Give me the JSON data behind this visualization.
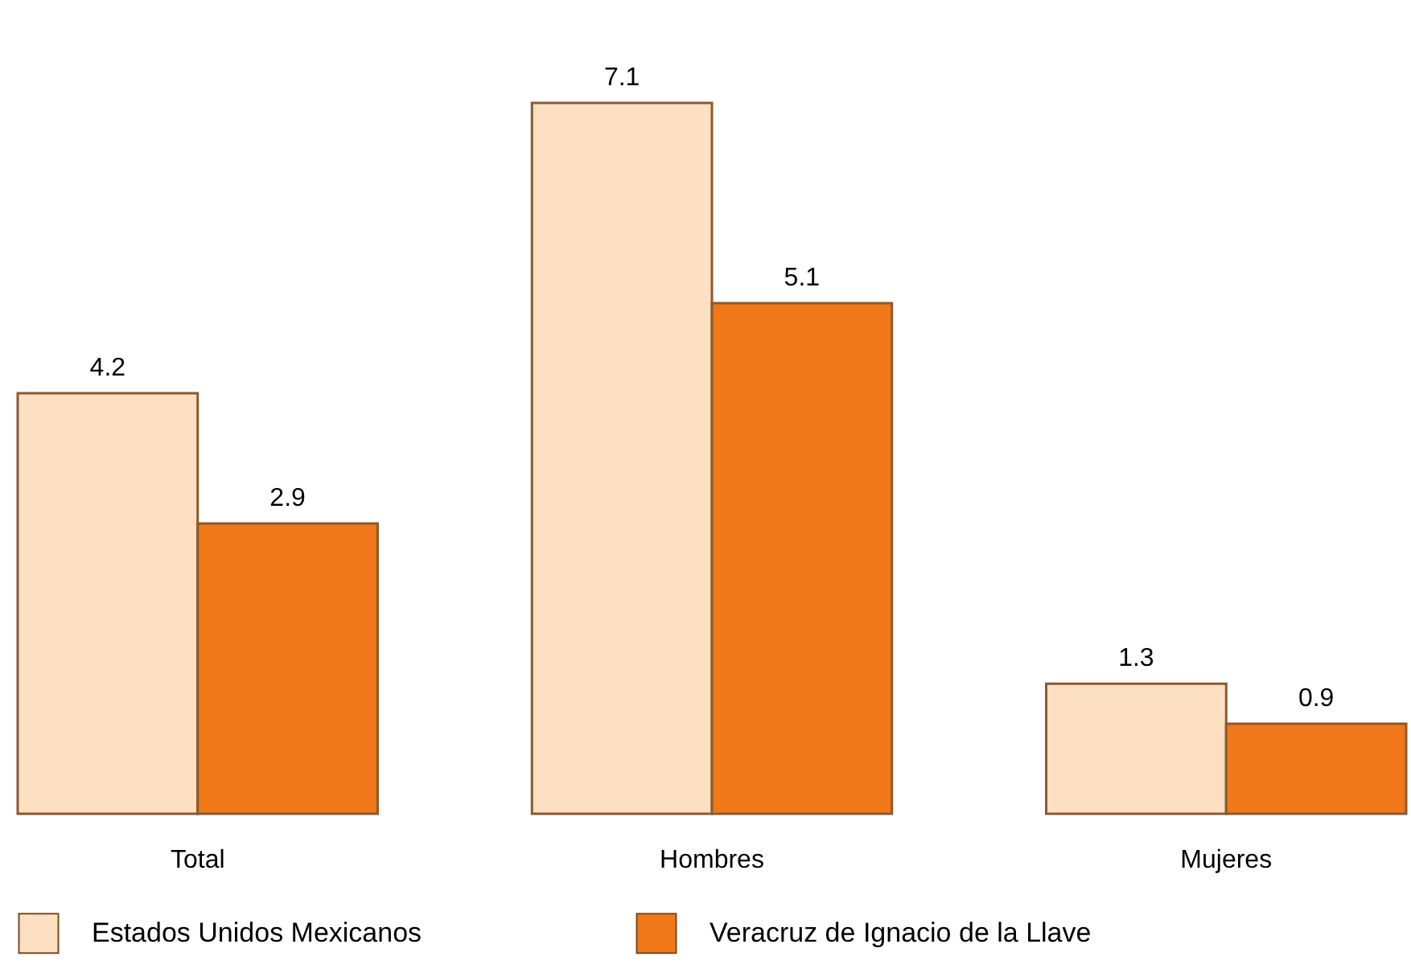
{
  "chart_data": {
    "type": "bar",
    "categories": [
      "Total",
      "Hombres",
      "Mujeres"
    ],
    "series": [
      {
        "name": "Estados Unidos Mexicanos",
        "color": "#fde0c2",
        "values": [
          4.2,
          7.1,
          1.3
        ]
      },
      {
        "name": "Veracruz de Ignacio de la Llave",
        "color": "#f07818",
        "values": [
          2.9,
          5.1,
          0.9
        ]
      }
    ],
    "data_labels": true,
    "legend": "bottom",
    "grid": false
  }
}
